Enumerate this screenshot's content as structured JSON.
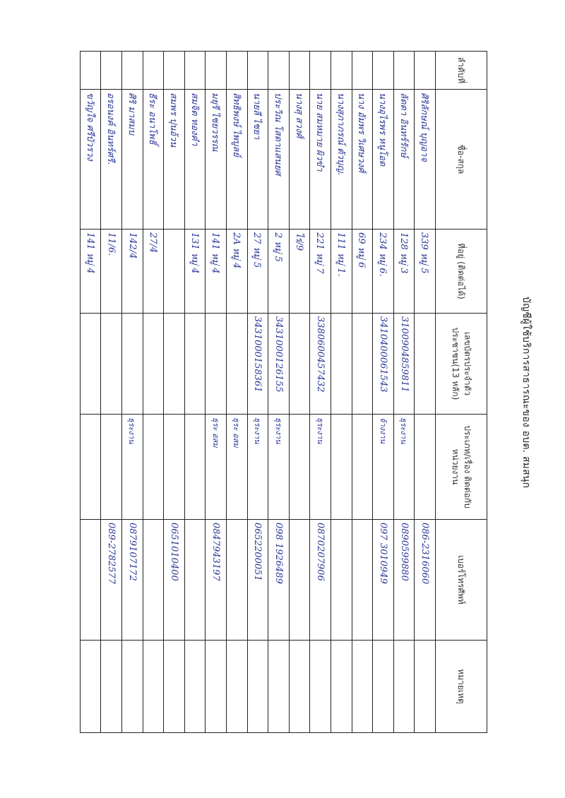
{
  "title": "บัญชีผู้ใช้บริการสาธารณะของ อบต. สมสนุก",
  "ink_color": "#2a3896",
  "headers": [
    "ลำดับที่",
    "ชื่อ-สกุล",
    "ที่อยู่ (ติดต่อได้)",
    "เลขบัตรประจำตัวประชาชน(13 หลัก)",
    "ประเภท/เรื่อง ติดต่อกับหน่วยงาน",
    "เบอร์โทรศัพท์",
    "หมายเหตุ"
  ],
  "rows": [
    {
      "no": "",
      "name": "ศิริลักษณ์ บุญอาจ",
      "address": "339 หมู่ 5",
      "id": "",
      "purpose": "",
      "phone": "086-2316060",
      "note": ""
    },
    {
      "no": "",
      "name": "ลัดดา อินทร์รักษ์",
      "address": "128 หมู่ 3",
      "id": "3100904859811",
      "purpose": "ธุระงาน",
      "phone": "0890599880",
      "note": ""
    },
    {
      "no": "",
      "name": "นางอุไรพร หนูโอด",
      "address": "234 หมู่ 6.",
      "id": "3410400061543",
      "purpose": "จ้างงาน",
      "phone": "097 3010949",
      "note": ""
    },
    {
      "no": "",
      "name": "นาง อัมพร วิเศษวงศ์",
      "address": "69 หมู่ 6",
      "id": "",
      "purpose": "",
      "phone": "",
      "note": ""
    },
    {
      "no": "",
      "name": "นางสุภาภรณ์ ตัวบุญ.",
      "address": "111 หมู่ 1.",
      "id": "",
      "purpose": "",
      "phone": "",
      "note": ""
    },
    {
      "no": "",
      "name": "นาย สมหมาย ผิวขำ",
      "address": "221 หมู่ 7",
      "id": "3380600457432",
      "purpose": "ธุระงาน",
      "phone": "0870207906",
      "note": ""
    },
    {
      "no": "",
      "name": "นางสุ สวงศ์",
      "address": "ไร่/9",
      "id": "",
      "purpose": "",
      "phone": "",
      "note": ""
    },
    {
      "no": "",
      "name": "ประวิณ โสดาแสนยศ",
      "address": "2 หมู่ 5",
      "id": "3431000126155",
      "purpose": "ธุระงาน",
      "phone": "098 1926489",
      "note": ""
    },
    {
      "no": "",
      "name": "นายลี ไชยา",
      "address": "27 หมู่ 5",
      "id": "3431000158361",
      "purpose": "ธุระงาน",
      "phone": "0652200051",
      "note": ""
    },
    {
      "no": "",
      "name": "สิทธิพงษ์ ไพบูลย์",
      "address": "2A หมู่ 4",
      "id": "",
      "purpose": "ธุระ อสม",
      "phone": "",
      "note": ""
    },
    {
      "no": "",
      "name": "มยุรี ไชยวรรณ",
      "address": "141 หมู่ 4",
      "id": "",
      "purpose": "ธุระ อสม",
      "phone": "0847943197",
      "note": ""
    },
    {
      "no": "",
      "name": "สมจิต ทองคำ",
      "address": "131 หมู่ 4",
      "id": "",
      "purpose": "",
      "phone": "",
      "note": ""
    },
    {
      "no": "",
      "name": "สมพร ปุนอ้วน",
      "address": "",
      "id": "",
      "purpose": "",
      "phone": "0651010400",
      "note": ""
    },
    {
      "no": "",
      "name": "ธีระ อนาโพธิ์",
      "address": "27/4",
      "id": "",
      "purpose": "",
      "phone": "",
      "note": ""
    },
    {
      "no": "",
      "name": "ศิริ มาสมบ",
      "address": "142/4",
      "id": "",
      "purpose": "ธุระงาน",
      "phone": "0879107172",
      "note": ""
    },
    {
      "no": "",
      "name": "อรอนงค์ อินทร์ศรี.",
      "address": "11/6.",
      "id": "",
      "purpose": "",
      "phone": "089-2782577",
      "note": ""
    },
    {
      "no": "",
      "name": "ขวัญใจ ศรีบัวรวง",
      "address": "141 หมู่ 4",
      "id": "",
      "purpose": "",
      "phone": "",
      "note": ""
    }
  ]
}
